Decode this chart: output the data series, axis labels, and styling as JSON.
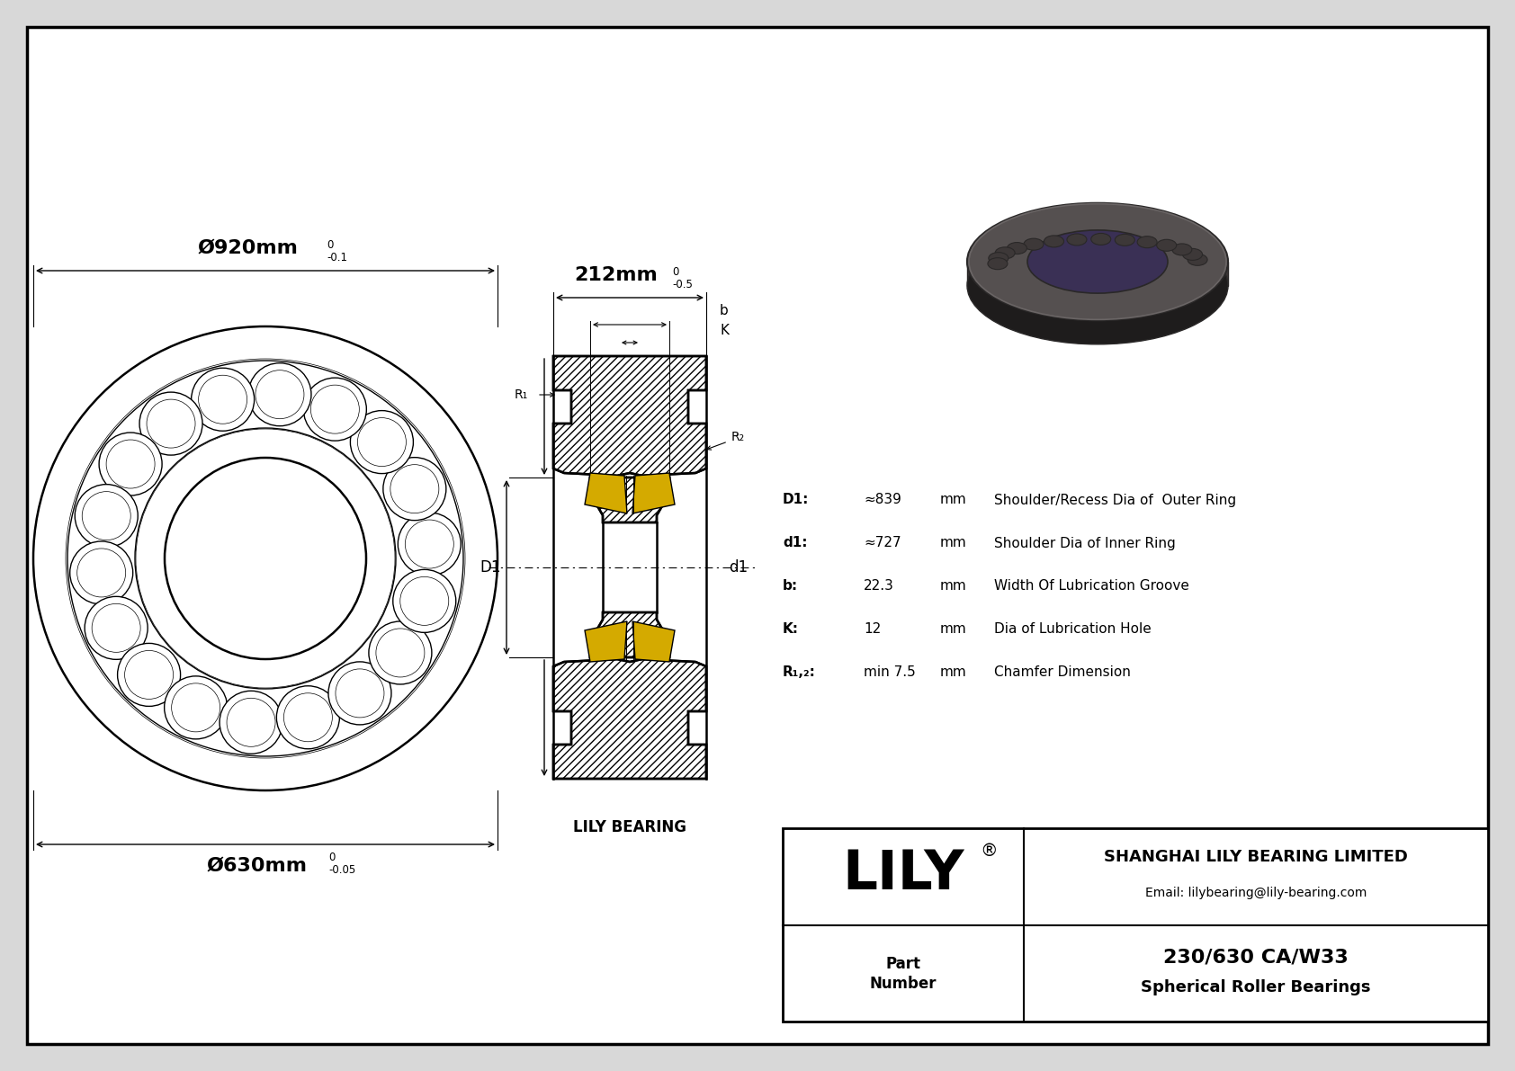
{
  "bg_color": "#d8d8d8",
  "drawing_bg": "#ffffff",
  "outer_diameter_label": "Ø920mm",
  "outer_tolerance_top": "0",
  "outer_tolerance_bot": "-0.1",
  "inner_diameter_label": "Ø630mm",
  "inner_tolerance_top": "0",
  "inner_tolerance_bot": "-0.05",
  "width_label": "212mm",
  "width_tolerance_top": "0",
  "width_tolerance_bot": "-0.5",
  "specs": [
    [
      "D1:",
      "≈839",
      "mm",
      "Shoulder/Recess Dia of  Outer Ring"
    ],
    [
      "d1:",
      "≈727",
      "mm",
      "Shoulder Dia of Inner Ring"
    ],
    [
      "b:",
      "22.3",
      "mm",
      "Width Of Lubrication Groove"
    ],
    [
      "K:",
      "12",
      "mm",
      "Dia of Lubrication Hole"
    ],
    [
      "R₁,₂:",
      "min 7.5",
      "mm",
      "Chamfer Dimension"
    ]
  ],
  "company": "SHANGHAI LILY BEARING LIMITED",
  "email": "Email: lilybearing@lily-bearing.com",
  "part_number": "230/630 CA/W33",
  "part_type": "Spherical Roller Bearings",
  "lily_label": "LILY",
  "lily_bearing_label": "LILY BEARING",
  "R1_label": "R₁",
  "R2_label": "R₂",
  "D1_label": "D1",
  "d1_label": "d1",
  "b_label": "b",
  "K_label": "K"
}
